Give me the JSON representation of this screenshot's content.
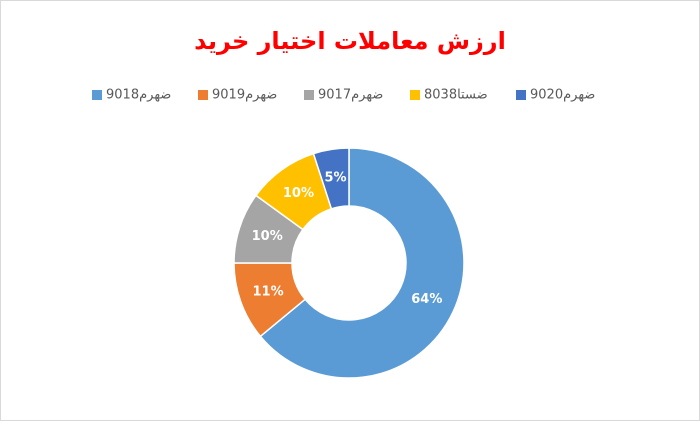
{
  "chart_data": {
    "type": "donut",
    "title": "ارزش معاملات اختیار خرید",
    "categories": [
      "ضهرم9018",
      "ضهرم9019",
      "ضهرم9017",
      "ضستا8038",
      "ضهرم9020"
    ],
    "values": [
      64,
      11,
      10,
      10,
      5
    ],
    "value_labels": [
      "64%",
      "11%",
      "10%",
      "10%",
      "5%"
    ],
    "colors": [
      "#5b9bd5",
      "#ed7d31",
      "#a5a5a5",
      "#ffc000",
      "#4472c4"
    ]
  }
}
